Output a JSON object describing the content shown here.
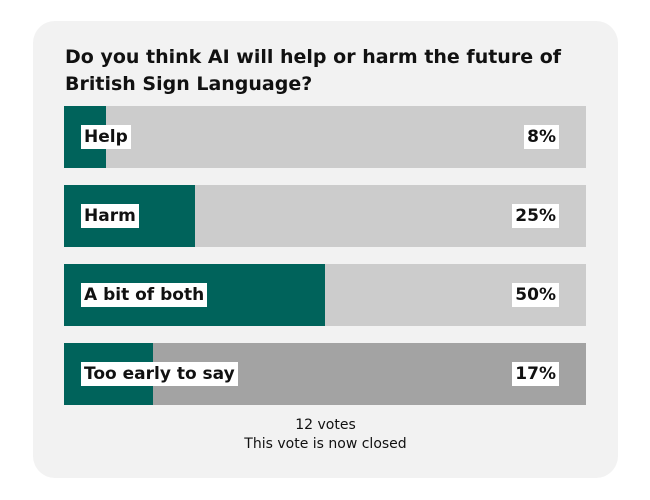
{
  "poll": {
    "question": "Do you think AI will help or harm the future of British Sign Language?",
    "options": [
      {
        "label": "Help",
        "percent_text": "8%",
        "percent": 8
      },
      {
        "label": "Harm",
        "percent_text": "25%",
        "percent": 25
      },
      {
        "label": "A bit of both",
        "percent_text": "50%",
        "percent": 50
      },
      {
        "label": "Too early to say",
        "percent_text": "17%",
        "percent": 17
      }
    ],
    "votes": "12 votes",
    "status": "This vote is now closed"
  },
  "colors": {
    "fill": "#00635b",
    "track": "#cccccc",
    "track_highlight": "#a3a3a3",
    "card_background": "#f2f2f2"
  }
}
